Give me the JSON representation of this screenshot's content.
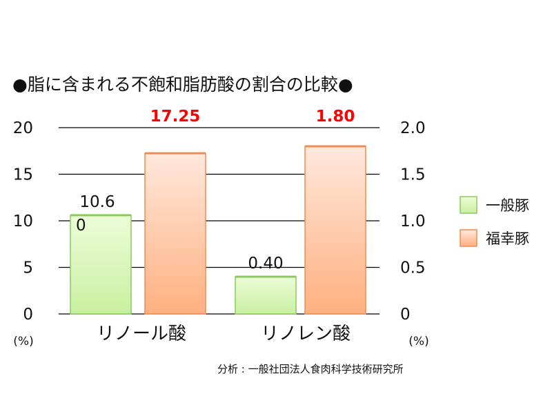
{
  "chart_data": {
    "type": "bar",
    "title": "●脂に含まれる不飽和脂肪酸の割合の比較●",
    "categories": [
      "リノール酸",
      "リノレン酸"
    ],
    "series": [
      {
        "name": "一般豚",
        "color": "#c8f0a0",
        "edge": "#8cc860"
      },
      {
        "name": "福幸豚",
        "color": "#ffc49a",
        "edge": "#f08c50"
      }
    ],
    "groups": [
      {
        "category": "リノール酸",
        "axis": "left",
        "values": [
          10.6,
          17.25
        ],
        "labels": [
          "10.6",
          "17.25"
        ],
        "label_colors": [
          "#111111",
          "#ff0000"
        ]
      },
      {
        "category": "リノレン酸",
        "axis": "right",
        "values": [
          0.4,
          1.8
        ],
        "labels": [
          "0.40",
          "1.80"
        ],
        "label_colors": [
          "#111111",
          "#ff0000"
        ]
      }
    ],
    "left_axis": {
      "min": 0,
      "max": 20,
      "ticks": [
        "0",
        "5",
        "10",
        "15",
        "20"
      ],
      "unit": "(%)"
    },
    "right_axis": {
      "min": 0,
      "max": 2.0,
      "ticks": [
        "0",
        "0.5",
        "1.0",
        "1.5",
        "2.0"
      ],
      "unit": "(%)"
    },
    "grid": true,
    "legend_position": "right",
    "stray_label": "0",
    "source": "分析 : 一般社団法人食肉科学技術研究所"
  }
}
